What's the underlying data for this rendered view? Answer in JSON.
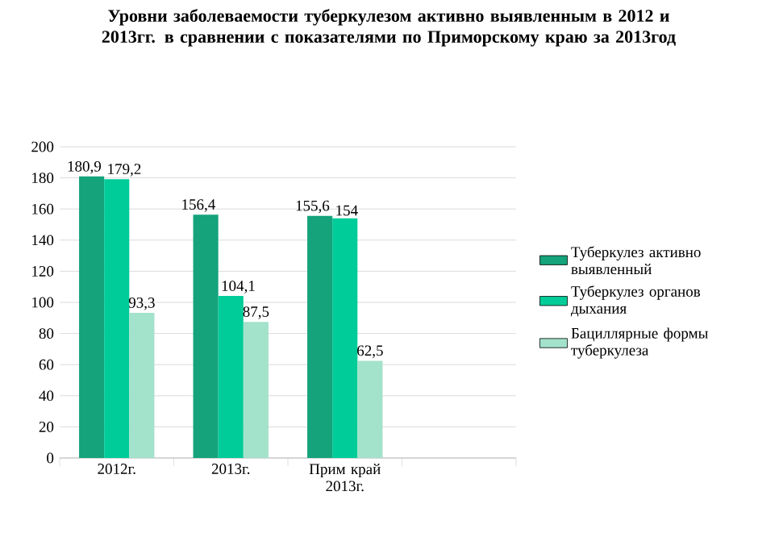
{
  "chart_data": {
    "type": "bar",
    "title": "Уровни заболеваемости туберкулезом активно выявленным в 2012 и 2013гг. в сравнении с показателями по Приморскому краю за 2013год",
    "categories": [
      "2012г.",
      "2013г.",
      "Прим край 2013г.",
      null
    ],
    "series": [
      {
        "name": "Туберкулез активно выявленный",
        "color": "#14a37b",
        "values": [
          180.9,
          156.4,
          155.6,
          null
        ],
        "value_labels": [
          "180,9",
          "156,4",
          "155,6",
          null
        ]
      },
      {
        "name": "Туберкулез органов дыхания",
        "color": "#00cc99",
        "values": [
          179.2,
          104.1,
          154,
          null
        ],
        "value_labels": [
          "179,2",
          "104,1",
          "154",
          null
        ]
      },
      {
        "name": "Бациллярные формы туберкулеза",
        "color": "#a3e2cb",
        "values": [
          93.3,
          87.5,
          62.5,
          null
        ],
        "value_labels": [
          "93,3",
          "87,5",
          "62,5",
          null
        ]
      }
    ],
    "ylim": [
      0,
      200
    ],
    "yticks": [
      0,
      20,
      40,
      60,
      80,
      100,
      120,
      140,
      160,
      180,
      200
    ],
    "grid": "y",
    "legend": "right"
  }
}
